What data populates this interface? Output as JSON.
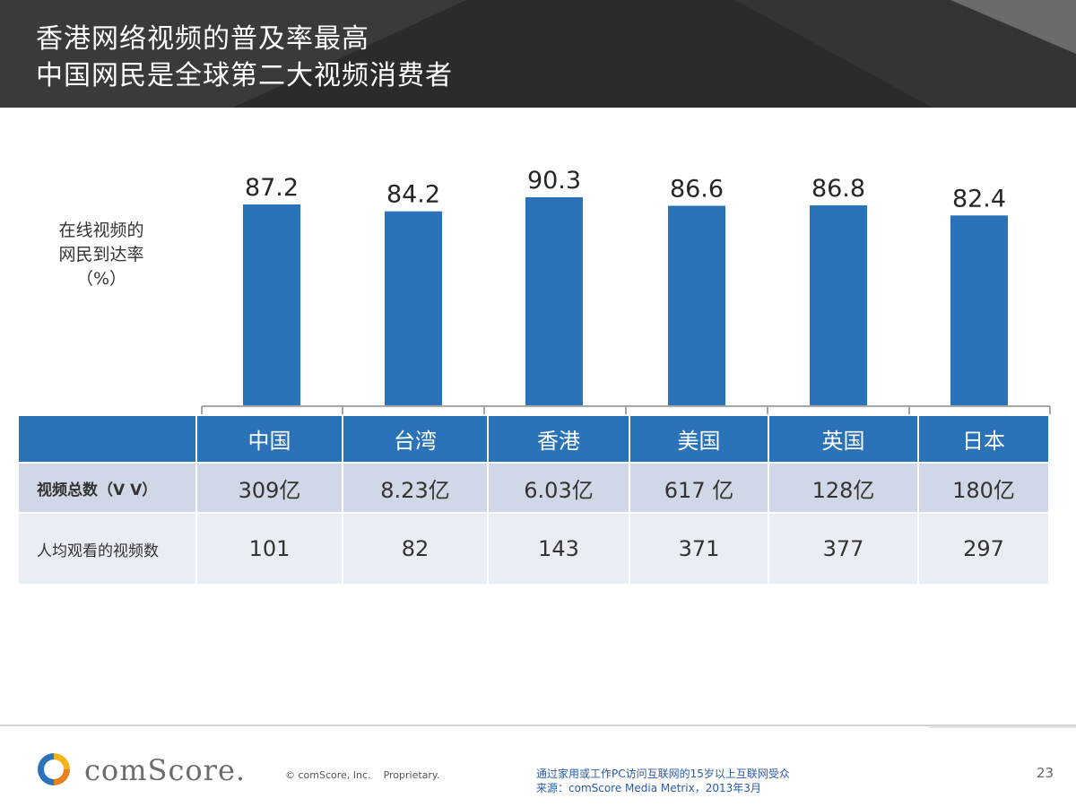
{
  "header": {
    "title_line1": "香港网络视频的普及率最高",
    "title_line2": "中国网民是全球第二大视频消费者"
  },
  "y_axis_label": [
    "在线视频的",
    "网民到达率",
    "（%）"
  ],
  "chart_data": {
    "type": "bar",
    "categories": [
      "中国",
      "台湾",
      "香港",
      "美国",
      "英国",
      "日本"
    ],
    "values": [
      87.2,
      84.2,
      90.3,
      86.6,
      86.8,
      82.4
    ],
    "value_labels": [
      "87.2",
      "84.2",
      "90.3",
      "86.6",
      "86.8",
      "82.4"
    ],
    "ylabel": "在线视频的 网民到达率 （%）",
    "bar_color": "#2a73b8",
    "grid": false,
    "legend": "none"
  },
  "table": {
    "columns": [
      "中国",
      "台湾",
      "香港",
      "美国",
      "英国",
      "日本"
    ],
    "rows": [
      {
        "label": "视频总数（V V）",
        "values": [
          "309亿",
          "8.23亿",
          "6.03亿",
          "617 亿",
          "128亿",
          "180亿"
        ]
      },
      {
        "label": "人均观看的视频数",
        "values": [
          "101",
          "82",
          "143",
          "371",
          "377",
          "297"
        ]
      }
    ]
  },
  "footer": {
    "logo_text": "comScore.",
    "copyright": "© comScore, Inc.",
    "proprietary": "Proprietary.",
    "note_line1": "通过家用或工作PC访问互联网的15岁以上互联网受众",
    "note_line2": "来源：comScore Media Metrix，2013年3月",
    "page_number": "23"
  },
  "colors": {
    "header_bg": "#2b2b2b",
    "accent_blue": "#2a73b8",
    "row1_bg": "#d0d7e6",
    "row2_bg": "#e9edf4",
    "note_text": "#2a5aa8"
  }
}
